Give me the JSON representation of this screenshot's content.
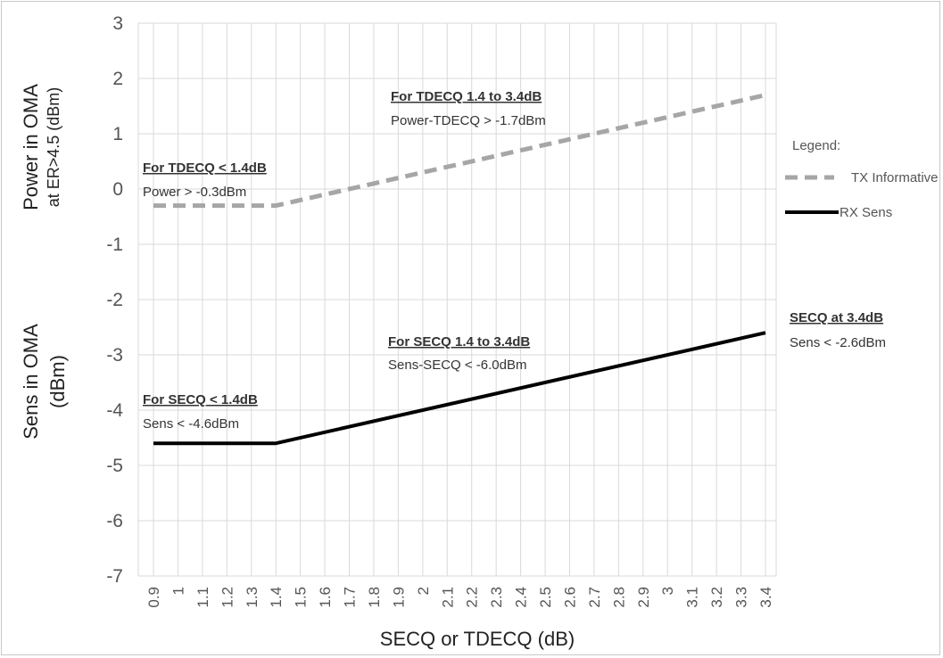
{
  "chart_data": {
    "type": "line",
    "title": "",
    "xlabel": "SECQ or TDECQ (dB)",
    "ylabel_top": "Power  in OMA",
    "ylabel_top_sub": "at ER>4.5 (dBm)",
    "ylabel_bottom": "Sens in OMA",
    "ylabel_bottom_sub": "(dBm)",
    "x_ticks": [
      "0.9",
      "1",
      "1.1",
      "1.2",
      "1.3",
      "1.4",
      "1.5",
      "1.6",
      "1.7",
      "1.8",
      "1.9",
      "2",
      "2.1",
      "2.2",
      "2.3",
      "2.4",
      "2.5",
      "2.6",
      "2.7",
      "2.8",
      "2.9",
      "3",
      "3.1",
      "3.2",
      "3.3",
      "3.4"
    ],
    "xlim": [
      0.9,
      3.4
    ],
    "ylim": [
      -7,
      3
    ],
    "y_ticks": [
      3,
      2,
      1,
      0,
      -1,
      -2,
      -3,
      -4,
      -5,
      -6,
      -7
    ],
    "grid": true,
    "legend_title": "Legend:",
    "legend_position": "right",
    "series": [
      {
        "name": "TX Informative",
        "style": "dashed",
        "color": "#a6a6a6",
        "points": [
          [
            0.9,
            -0.3
          ],
          [
            1.4,
            -0.3
          ],
          [
            3.4,
            1.7
          ]
        ]
      },
      {
        "name": "RX Sens",
        "style": "solid",
        "color": "#000000",
        "points": [
          [
            0.9,
            -4.6
          ],
          [
            1.4,
            -4.6
          ],
          [
            3.4,
            -2.6
          ]
        ]
      }
    ],
    "annotations": [
      {
        "heading": "For TDECQ < 1.4dB",
        "text": "Power > -0.3dBm"
      },
      {
        "heading": "For TDECQ 1.4 to 3.4dB",
        "text": "Power-TDECQ > -1.7dBm"
      },
      {
        "heading": "For SECQ < 1.4dB",
        "text": "Sens < -4.6dBm"
      },
      {
        "heading": "For SECQ 1.4 to 3.4dB",
        "text": "Sens-SECQ < -6.0dBm"
      },
      {
        "heading": "SECQ at 3.4dB",
        "text": "Sens < -2.6dBm"
      }
    ]
  }
}
